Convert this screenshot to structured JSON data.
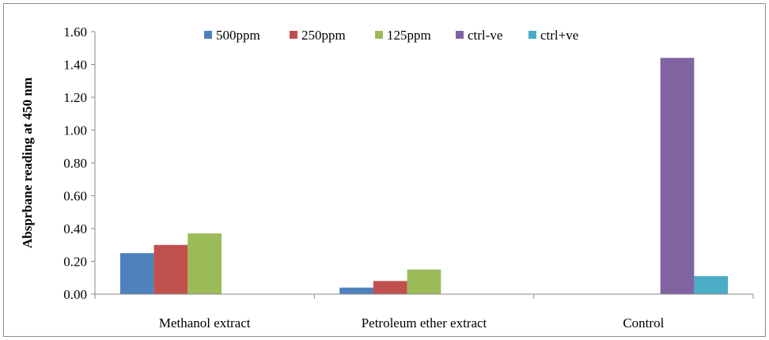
{
  "chart_data": {
    "type": "bar",
    "title": "",
    "xlabel": "",
    "ylabel": "Absprbane reading at 450 nm",
    "ylim": [
      0,
      1.6
    ],
    "yticks": [
      "0.00",
      "0.20",
      "0.40",
      "0.60",
      "0.80",
      "1.00",
      "1.20",
      "1.40",
      "1.60"
    ],
    "categories": [
      "Methanol extract",
      "Petroleum ether extract",
      "Control"
    ],
    "grid": false,
    "legend_position": "top",
    "series": [
      {
        "name": "500ppm",
        "color": "#4F81BD",
        "values": [
          0.25,
          0.04,
          null
        ]
      },
      {
        "name": "250ppm",
        "color": "#C0504D",
        "values": [
          0.3,
          0.08,
          null
        ]
      },
      {
        "name": "125ppm",
        "color": "#9BBB59",
        "values": [
          0.37,
          0.15,
          null
        ]
      },
      {
        "name": "ctrl-ve",
        "color": "#8064A2",
        "values": [
          null,
          null,
          1.44
        ]
      },
      {
        "name": "ctrl+ve",
        "color": "#4BACC6",
        "values": [
          null,
          null,
          0.11
        ]
      }
    ]
  }
}
